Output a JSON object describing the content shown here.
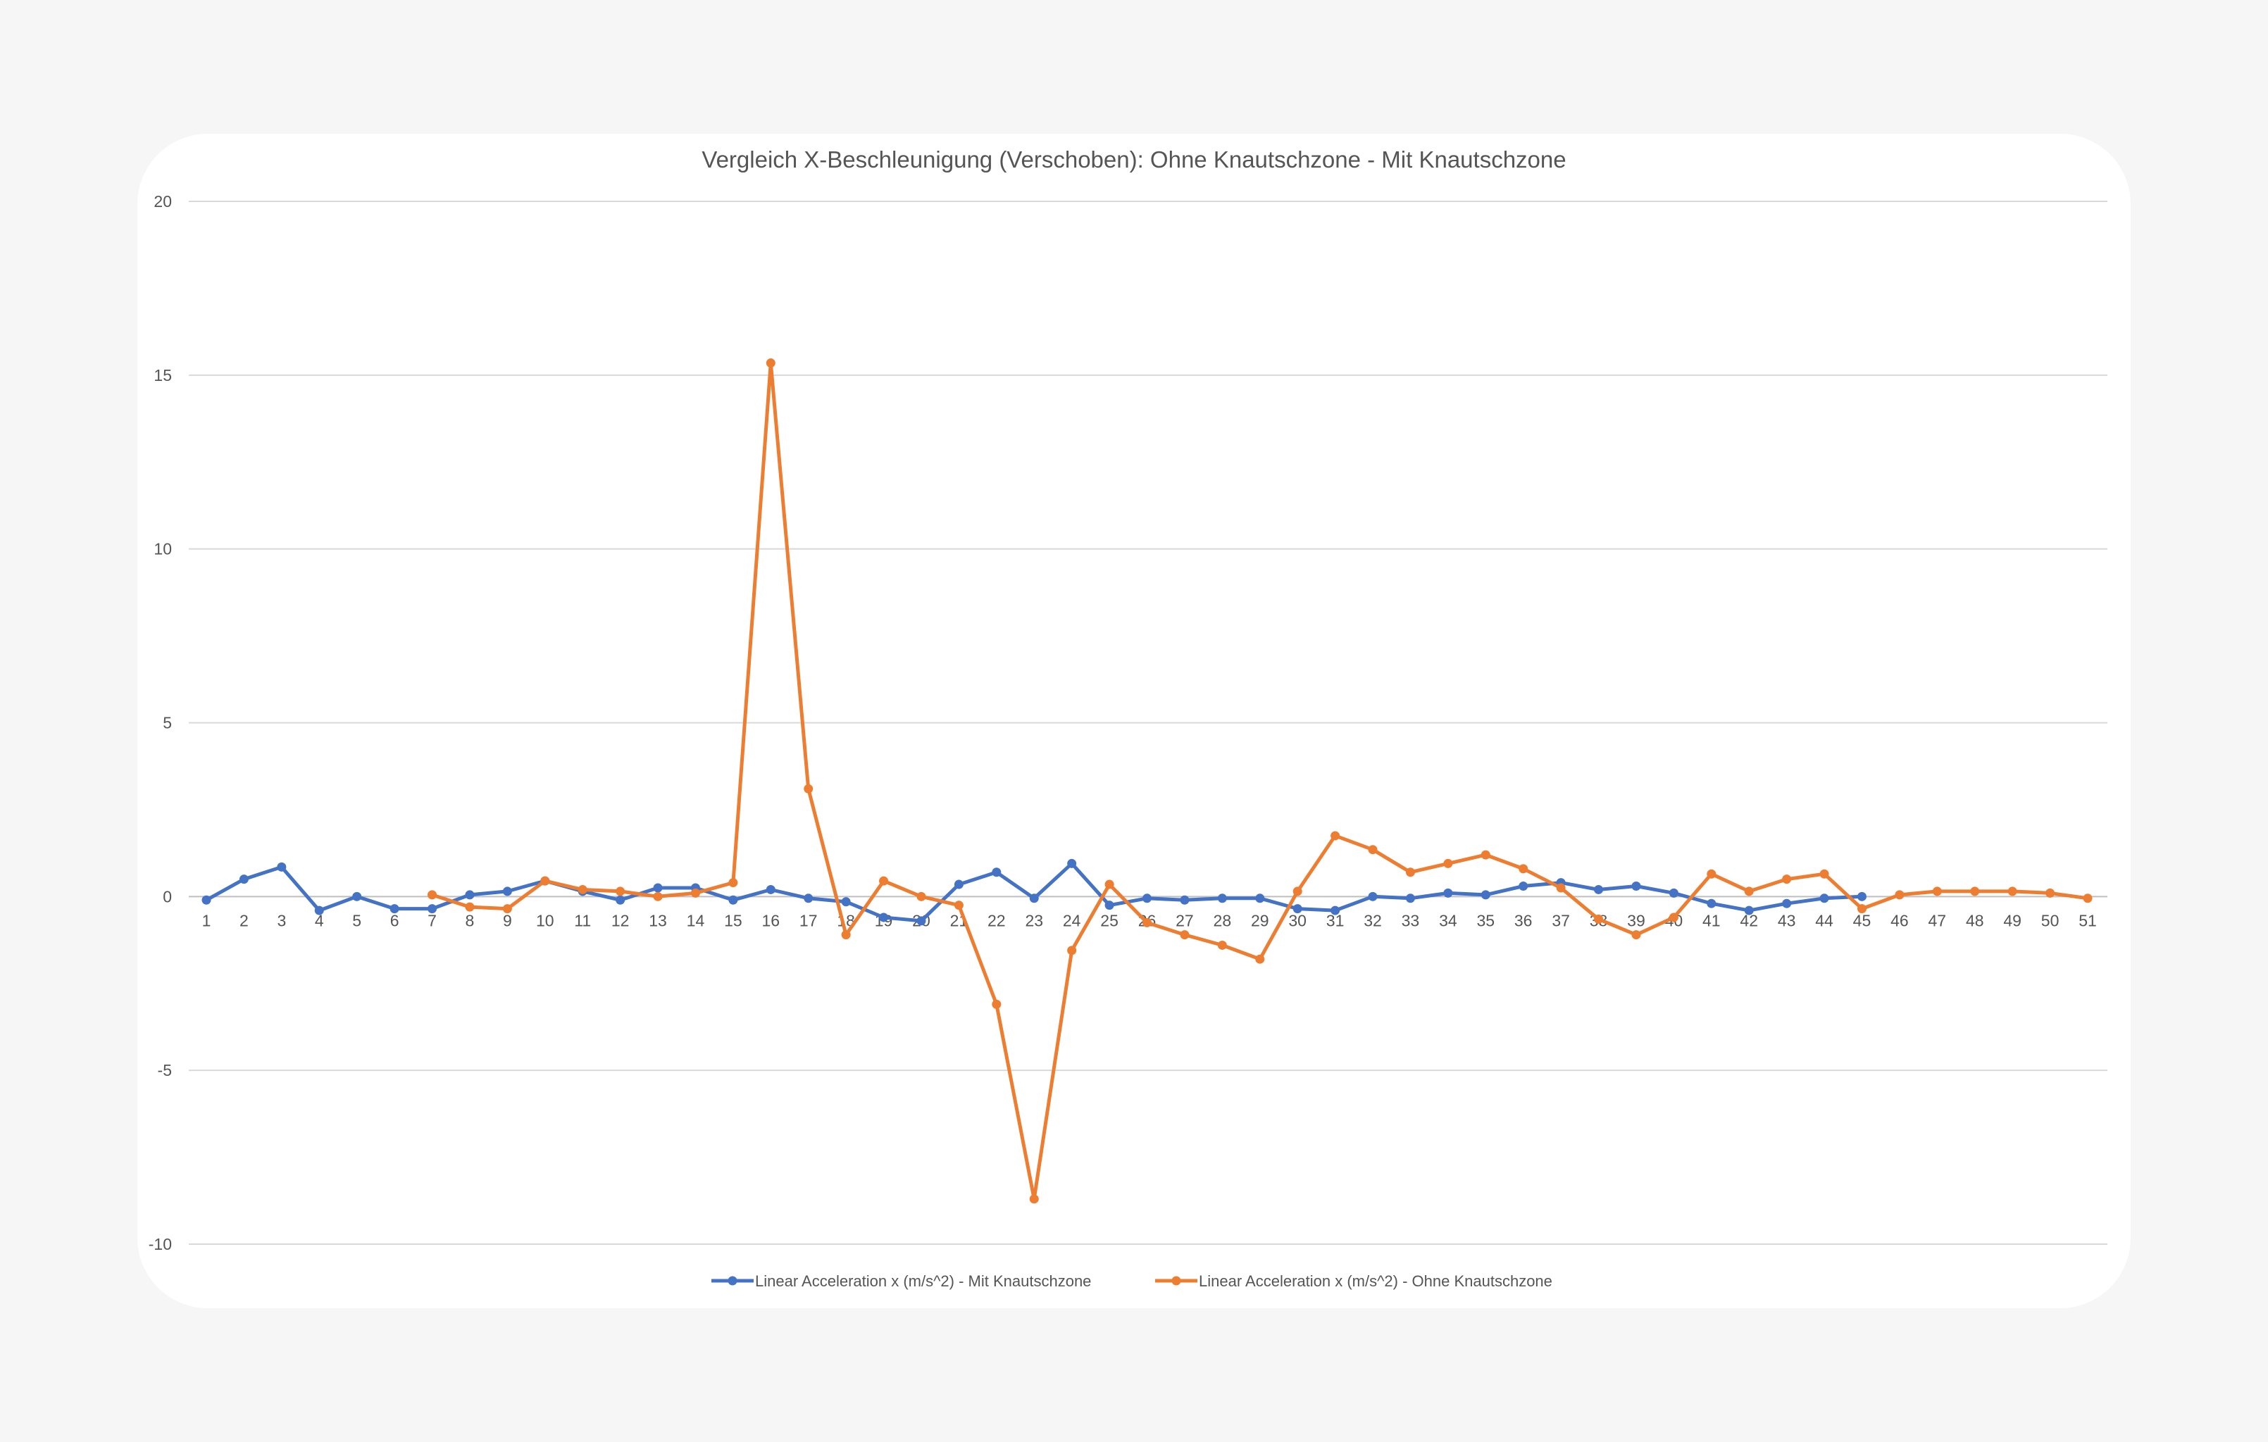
{
  "chart_data": {
    "type": "line",
    "title": "Vergleich X-Beschleunigung (Verschoben): Ohne Knautschzone - Mit Knautschzone",
    "xlabel": "",
    "ylabel": "",
    "ylim": [
      -10,
      20
    ],
    "yticks": [
      -10,
      -5,
      0,
      5,
      10,
      15,
      20
    ],
    "categories": [
      "1",
      "2",
      "3",
      "4",
      "5",
      "6",
      "7",
      "8",
      "9",
      "10",
      "11",
      "12",
      "13",
      "14",
      "15",
      "16",
      "17",
      "18",
      "19",
      "20",
      "21",
      "22",
      "23",
      "24",
      "25",
      "26",
      "27",
      "28",
      "29",
      "30",
      "31",
      "32",
      "33",
      "34",
      "35",
      "36",
      "37",
      "38",
      "39",
      "40",
      "41",
      "42",
      "43",
      "44",
      "45",
      "46",
      "47",
      "48",
      "49",
      "50",
      "51"
    ],
    "grid": true,
    "legend_position": "bottom",
    "series": [
      {
        "name": "Linear Acceleration x (m/s^2) - Mit Knautschzone",
        "color": "#4472C4",
        "values": [
          -0.1,
          0.5,
          0.85,
          -0.4,
          0.0,
          -0.35,
          -0.35,
          0.05,
          0.15,
          0.45,
          0.15,
          -0.1,
          0.25,
          0.25,
          -0.1,
          0.2,
          -0.05,
          -0.15,
          -0.6,
          -0.7,
          0.35,
          0.7,
          -0.05,
          0.95,
          -0.25,
          -0.05,
          -0.1,
          -0.05,
          -0.05,
          -0.35,
          -0.4,
          0.0,
          -0.05,
          0.1,
          0.05,
          0.3,
          0.4,
          0.2,
          0.3,
          0.1,
          -0.2,
          -0.4,
          -0.2,
          -0.05,
          0.0,
          null,
          null,
          null,
          null,
          null,
          null
        ]
      },
      {
        "name": "Linear Acceleration x (m/s^2) - Ohne Knautschzone",
        "color": "#ED7D31",
        "values": [
          null,
          null,
          null,
          null,
          null,
          null,
          0.05,
          -0.3,
          -0.35,
          0.45,
          0.2,
          0.15,
          0.0,
          0.1,
          0.4,
          15.35,
          3.1,
          -1.1,
          0.45,
          0.0,
          -0.25,
          -3.1,
          -8.7,
          -1.55,
          0.35,
          -0.75,
          -1.1,
          -1.4,
          -1.8,
          0.15,
          1.75,
          1.35,
          0.7,
          0.95,
          1.2,
          0.8,
          0.25,
          -0.65,
          -1.1,
          -0.6,
          0.65,
          0.15,
          0.5,
          0.65,
          -0.35,
          0.05,
          0.15,
          0.15,
          0.15,
          0.1,
          -0.05
        ]
      }
    ]
  }
}
